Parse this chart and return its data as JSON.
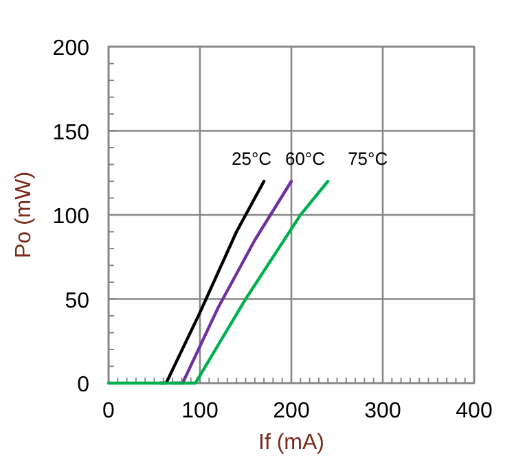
{
  "chart_data": {
    "type": "line",
    "xlabel": "If (mA)",
    "ylabel": "Po (mW)",
    "xlim": [
      0,
      400
    ],
    "ylim": [
      0,
      200
    ],
    "xticks": [
      0,
      {
        "value": 10,
        "label": null
      },
      {
        "value": 20,
        "label": null
      },
      {
        "value": 30,
        "label": null
      },
      {
        "value": 40,
        "label": null
      },
      {
        "value": 50,
        "label": null
      },
      {
        "value": 60,
        "label": null
      },
      {
        "value": 70,
        "label": null
      },
      {
        "value": 80,
        "label": null
      },
      {
        "value": 90,
        "label": null
      },
      100,
      {
        "value": 110,
        "label": null
      },
      {
        "value": 120,
        "label": null
      },
      {
        "value": 130,
        "label": null
      },
      {
        "value": 140,
        "label": null
      },
      {
        "value": 150,
        "label": null
      },
      {
        "value": 160,
        "label": null
      },
      {
        "value": 170,
        "label": null
      },
      {
        "value": 180,
        "label": null
      },
      {
        "value": 190,
        "label": null
      },
      200,
      {
        "value": 210,
        "label": null
      },
      {
        "value": 220,
        "label": null
      },
      {
        "value": 230,
        "label": null
      },
      {
        "value": 240,
        "label": null
      },
      {
        "value": 250,
        "label": null
      },
      {
        "value": 260,
        "label": null
      },
      {
        "value": 270,
        "label": null
      },
      {
        "value": 280,
        "label": null
      },
      {
        "value": 290,
        "label": null
      },
      300,
      {
        "value": 310,
        "label": null
      },
      {
        "value": 320,
        "label": null
      },
      {
        "value": 330,
        "label": null
      },
      {
        "value": 340,
        "label": null
      },
      {
        "value": 350,
        "label": null
      },
      {
        "value": 360,
        "label": null
      },
      {
        "value": 370,
        "label": null
      },
      {
        "value": 380,
        "label": null
      },
      {
        "value": 390,
        "label": null
      },
      400
    ],
    "yticks": [
      0,
      {
        "value": 10,
        "label": null
      },
      {
        "value": 20,
        "label": null
      },
      {
        "value": 30,
        "label": null
      },
      {
        "value": 40,
        "label": null
      },
      50,
      {
        "value": 60,
        "label": null
      },
      {
        "value": 70,
        "label": null
      },
      {
        "value": 80,
        "label": null
      },
      {
        "value": 90,
        "label": null
      },
      100,
      {
        "value": 110,
        "label": null
      },
      {
        "value": 120,
        "label": null
      },
      {
        "value": 130,
        "label": null
      },
      {
        "value": 140,
        "label": null
      },
      150,
      {
        "value": 160,
        "label": null
      },
      {
        "value": 170,
        "label": null
      },
      {
        "value": 180,
        "label": null
      },
      {
        "value": 190,
        "label": null
      },
      200
    ],
    "grid": true,
    "line_style": "solid",
    "marker": "none",
    "series": [
      {
        "name": "25°C",
        "color": "#000000",
        "x": [
          56,
          63,
          100,
          140,
          170
        ],
        "values": [
          0,
          0,
          42,
          90,
          120
        ]
      },
      {
        "name": "60°C",
        "color": "#7030a0",
        "x": [
          70,
          81,
          120,
          160,
          200
        ],
        "values": [
          0,
          0,
          45,
          85,
          120
        ]
      },
      {
        "name": "75°C",
        "color": "#00b050",
        "x": [
          0,
          95,
          150,
          210,
          240
        ],
        "values": [
          0,
          0,
          50,
          100,
          120
        ]
      }
    ]
  }
}
